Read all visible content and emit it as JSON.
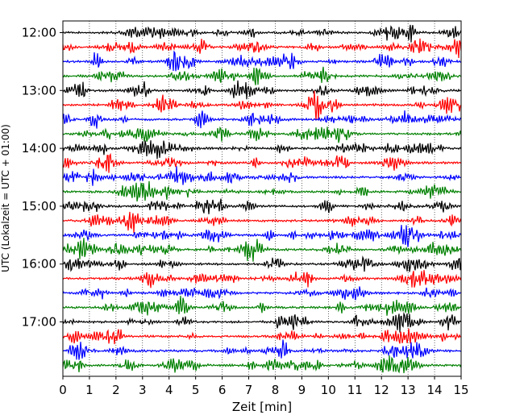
{
  "chart_data": {
    "type": "line",
    "title": "",
    "xlabel": "Zeit  [min]",
    "ylabel": "UTC (Lokalzeit = UTC + 01:00)",
    "xlim": [
      0,
      15
    ],
    "x_ticks": [
      "0",
      "1",
      "2",
      "3",
      "4",
      "5",
      "6",
      "7",
      "8",
      "9",
      "10",
      "11",
      "12",
      "13",
      "14",
      "15"
    ],
    "grid": "vertical-dotted",
    "y_tick_labels": [
      "12:00",
      "13:00",
      "14:00",
      "15:00",
      "16:00",
      "17:00"
    ],
    "trace_interval_minutes": 15,
    "trace_count": 24,
    "first_trace_utc": "12:00",
    "last_trace_utc": "17:45",
    "colors": [
      "#000000",
      "#ff0000",
      "#0000ff",
      "#008000"
    ]
  }
}
